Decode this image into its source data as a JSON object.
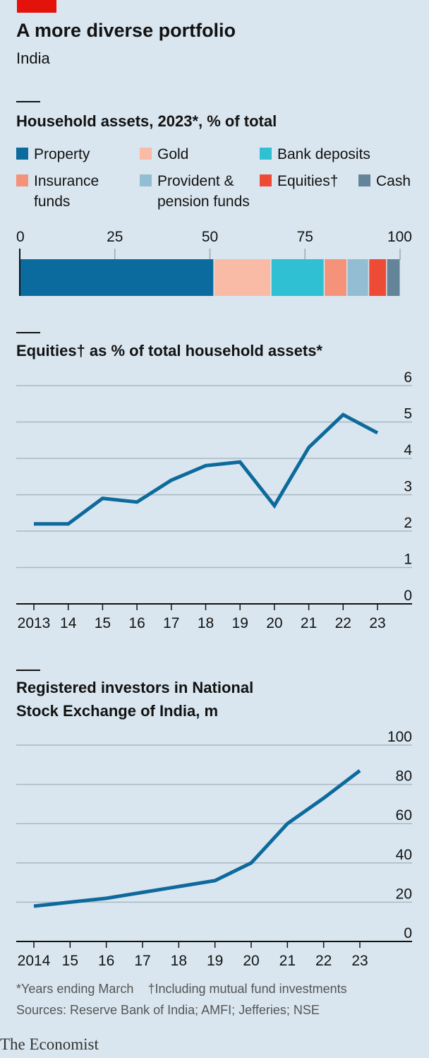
{
  "header": {
    "title": "A more diverse portfolio",
    "subtitle": "India"
  },
  "footer": {
    "note1": "*Years ending March",
    "note2": "†Including mutual fund investments",
    "sources": "Sources: Reserve Bank of India; AMFI; Jefferies; NSE",
    "brand": "The Economist"
  },
  "colors": {
    "background": "#d9e6ef",
    "line": "#0e6a9c",
    "accent": "#e3120b"
  },
  "chart_data": [
    {
      "type": "bar",
      "stacked": true,
      "orientation": "horizontal",
      "title": "Household assets, 2023*, % of total",
      "xlim": [
        0,
        100
      ],
      "xticks": [
        "0",
        "25",
        "50",
        "75",
        "100"
      ],
      "series": [
        {
          "name": "Property",
          "value": 51,
          "color": "#0b6b9e"
        },
        {
          "name": "Gold",
          "value": 15,
          "color": "#f9bba5"
        },
        {
          "name": "Bank deposits",
          "value": 14,
          "color": "#2fc0d3"
        },
        {
          "name": "Insurance funds",
          "value": 6,
          "color": "#f4937a"
        },
        {
          "name": "Provident & pension funds",
          "value": 5.7,
          "color": "#93bdd3"
        },
        {
          "name": "Equities†",
          "value": 4.7,
          "color": "#ee4b36"
        },
        {
          "name": "Cash",
          "value": 3.6,
          "color": "#648499"
        }
      ]
    },
    {
      "type": "line",
      "title": "Equities† as % of total household assets*",
      "x": [
        "2013",
        "14",
        "15",
        "16",
        "17",
        "18",
        "19",
        "20",
        "21",
        "22",
        "23"
      ],
      "values": [
        2.2,
        2.2,
        2.9,
        2.8,
        3.4,
        3.8,
        3.9,
        2.7,
        4.3,
        5.2,
        4.7
      ],
      "ylim": [
        0,
        6
      ],
      "yticks": [
        "0",
        "1",
        "2",
        "3",
        "4",
        "5",
        "6"
      ],
      "grid": true,
      "yaxis_side": "right"
    },
    {
      "type": "line",
      "title": "Registered investors in National Stock Exchange of India, m",
      "title_lines": [
        "Registered investors in National",
        "Stock Exchange of India, m"
      ],
      "x": [
        "2014",
        "15",
        "16",
        "17",
        "18",
        "19",
        "20",
        "21",
        "22",
        "23"
      ],
      "values": [
        18,
        20,
        22,
        25,
        28,
        31,
        40,
        60,
        73,
        87
      ],
      "ylim": [
        0,
        100
      ],
      "yticks": [
        "0",
        "20",
        "40",
        "60",
        "80",
        "100"
      ],
      "grid": true,
      "yaxis_side": "right"
    }
  ]
}
